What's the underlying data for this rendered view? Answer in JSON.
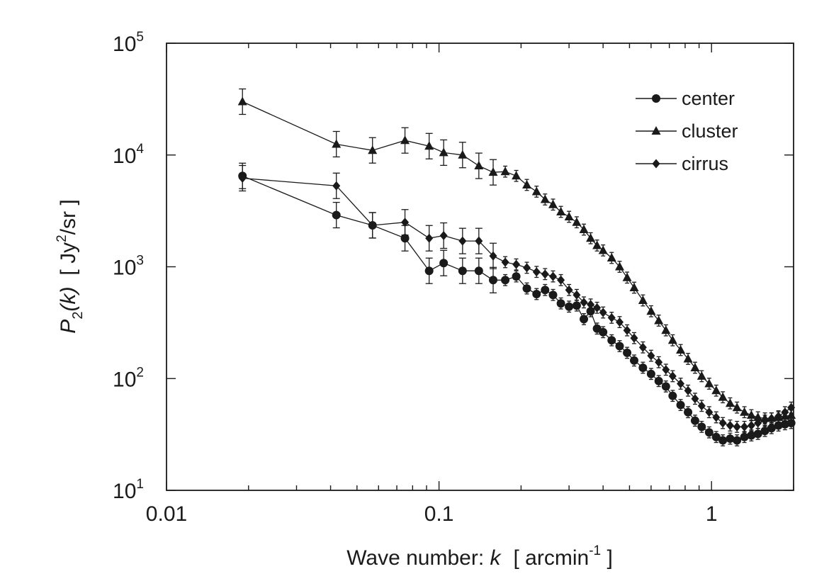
{
  "chart_data": {
    "type": "scatter",
    "x_scale": "log",
    "y_scale": "log",
    "xlim": [
      0.01,
      2.0
    ],
    "ylim": [
      10,
      100000
    ],
    "x_ticks": [
      {
        "value": 0.01,
        "label": "0.01"
      },
      {
        "value": 0.1,
        "label": "0.1"
      },
      {
        "value": 1,
        "label": "1"
      }
    ],
    "y_ticks": [
      {
        "value": 10,
        "base": "10",
        "exp": "1"
      },
      {
        "value": 100,
        "base": "10",
        "exp": "2"
      },
      {
        "value": 1000,
        "base": "10",
        "exp": "3"
      },
      {
        "value": 10000,
        "base": "10",
        "exp": "4"
      },
      {
        "value": 100000,
        "base": "10",
        "exp": "5"
      }
    ],
    "xlabel": {
      "text": "Wave number: ",
      "var": "k",
      "unit": "[ arcmin",
      "unit_exp": "-1",
      "close": " ]"
    },
    "ylabel": {
      "p": "P",
      "sub": "2",
      "arg": "(k)",
      "unit": "[ Jy",
      "unit_exp": "2",
      "unit_rest": "/sr ]"
    },
    "grid": false,
    "legend_position": "top-right",
    "series": [
      {
        "name": "center",
        "marker": "circle",
        "x": [
          0.019,
          0.042,
          0.057,
          0.075,
          0.092,
          0.104,
          0.122,
          0.14,
          0.158,
          0.175,
          0.192,
          0.21,
          0.228,
          0.245,
          0.262,
          0.28,
          0.3,
          0.32,
          0.34,
          0.36,
          0.38,
          0.4,
          0.43,
          0.46,
          0.49,
          0.52,
          0.56,
          0.6,
          0.64,
          0.68,
          0.72,
          0.77,
          0.82,
          0.87,
          0.92,
          0.98,
          1.04,
          1.1,
          1.17,
          1.24,
          1.32,
          1.4,
          1.48,
          1.57,
          1.66,
          1.76,
          1.86,
          1.96
        ],
        "y": [
          6500,
          2900,
          2350,
          1800,
          920,
          1080,
          920,
          920,
          760,
          760,
          820,
          640,
          570,
          620,
          560,
          470,
          440,
          450,
          340,
          400,
          280,
          260,
          220,
          195,
          170,
          145,
          125,
          110,
          95,
          85,
          70,
          58,
          50,
          42,
          37,
          33,
          30,
          28,
          29,
          28,
          30,
          31,
          32,
          34,
          36,
          38,
          39,
          40
        ]
      },
      {
        "name": "cluster",
        "marker": "triangle",
        "x": [
          0.019,
          0.042,
          0.057,
          0.075,
          0.092,
          0.104,
          0.122,
          0.14,
          0.158,
          0.175,
          0.192,
          0.21,
          0.228,
          0.245,
          0.262,
          0.28,
          0.3,
          0.32,
          0.34,
          0.36,
          0.38,
          0.4,
          0.43,
          0.46,
          0.49,
          0.52,
          0.56,
          0.6,
          0.64,
          0.68,
          0.72,
          0.77,
          0.82,
          0.87,
          0.92,
          0.98,
          1.04,
          1.1,
          1.17,
          1.24,
          1.32,
          1.4,
          1.48,
          1.57,
          1.66,
          1.76,
          1.86,
          1.96
        ],
        "y": [
          30000,
          12500,
          11000,
          13500,
          12000,
          10500,
          10000,
          8000,
          7000,
          7100,
          6500,
          5400,
          4700,
          4000,
          3600,
          3100,
          2800,
          2500,
          2150,
          1800,
          1550,
          1400,
          1200,
          1000,
          800,
          650,
          500,
          400,
          330,
          270,
          220,
          180,
          150,
          125,
          105,
          90,
          78,
          68,
          60,
          55,
          50,
          47,
          45,
          44,
          44,
          45,
          46,
          47
        ]
      },
      {
        "name": "cirrus",
        "marker": "diamond",
        "x": [
          0.019,
          0.042,
          0.057,
          0.075,
          0.092,
          0.104,
          0.122,
          0.14,
          0.158,
          0.175,
          0.192,
          0.21,
          0.228,
          0.245,
          0.262,
          0.28,
          0.3,
          0.32,
          0.34,
          0.36,
          0.38,
          0.4,
          0.43,
          0.46,
          0.49,
          0.52,
          0.56,
          0.6,
          0.64,
          0.68,
          0.72,
          0.77,
          0.82,
          0.87,
          0.92,
          0.98,
          1.04,
          1.1,
          1.17,
          1.24,
          1.32,
          1.4,
          1.48,
          1.57,
          1.66,
          1.76,
          1.86,
          1.96
        ],
        "y": [
          6200,
          5300,
          2350,
          2500,
          1800,
          1900,
          1700,
          1700,
          1250,
          1100,
          1050,
          980,
          900,
          860,
          820,
          760,
          620,
          560,
          480,
          460,
          430,
          390,
          350,
          320,
          270,
          230,
          190,
          160,
          140,
          120,
          105,
          90,
          78,
          66,
          57,
          50,
          45,
          40,
          38,
          37,
          37,
          38,
          40,
          42,
          44,
          46,
          50,
          55
        ]
      }
    ]
  }
}
